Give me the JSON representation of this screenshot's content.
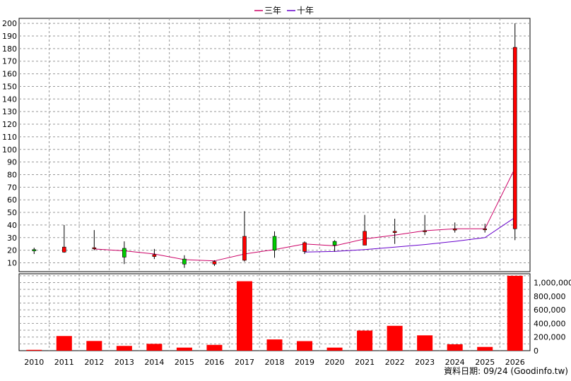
{
  "chart_data": [
    {
      "type": "candlestick",
      "legend": {
        "placement": "top-center",
        "entries": [
          {
            "name": "三年",
            "color": "#cc0066"
          },
          {
            "name": "十年",
            "color": "#6600cc"
          }
        ]
      },
      "categories": [
        "2010",
        "2011",
        "2012",
        "2013",
        "2014",
        "2015",
        "2016",
        "2017",
        "2018",
        "2019",
        "2020",
        "2021",
        "2022",
        "2023",
        "2024",
        "2025",
        "2026"
      ],
      "y_ticks": [
        10,
        20,
        30,
        40,
        50,
        60,
        70,
        80,
        90,
        100,
        110,
        120,
        130,
        140,
        150,
        160,
        170,
        180,
        190,
        200
      ],
      "ylim": [
        3,
        204
      ],
      "grid": true,
      "ohlc": [
        {
          "open": 19.5,
          "high": 22,
          "low": 17,
          "close": 20.5
        },
        {
          "open": 22.5,
          "high": 40,
          "low": 18,
          "close": 18.5
        },
        {
          "open": 22,
          "high": 36,
          "low": 20,
          "close": 21.5
        },
        {
          "open": 14.5,
          "high": 27,
          "low": 9,
          "close": 21.5
        },
        {
          "open": 16.5,
          "high": 21,
          "low": 13,
          "close": 15
        },
        {
          "open": 9,
          "high": 16,
          "low": 6,
          "close": 13
        },
        {
          "open": 11,
          "high": 12,
          "low": 7.5,
          "close": 9
        },
        {
          "open": 31,
          "high": 51,
          "low": 11,
          "close": 12
        },
        {
          "open": 20,
          "high": 35,
          "low": 14,
          "close": 31
        },
        {
          "open": 26,
          "high": 27,
          "low": 17,
          "close": 19
        },
        {
          "open": 24,
          "high": 28,
          "low": 19,
          "close": 27
        },
        {
          "open": 35,
          "high": 48,
          "low": 24,
          "close": 24
        },
        {
          "open": 35,
          "high": 45,
          "low": 25,
          "close": 34
        },
        {
          "open": 35.5,
          "high": 48,
          "low": 32,
          "close": 35
        },
        {
          "open": 37,
          "high": 42,
          "low": 34,
          "close": 36
        },
        {
          "open": 37,
          "high": 41,
          "low": 34,
          "close": 36.5
        },
        {
          "open": 181,
          "high": 200,
          "low": 28,
          "close": 37
        }
      ],
      "series": [
        {
          "name": "三年",
          "color": "#cc0066",
          "values": [
            null,
            null,
            21,
            19.5,
            17,
            12.5,
            11.5,
            17,
            20.5,
            25,
            23.5,
            29,
            32,
            35.5,
            37,
            37,
            85
          ]
        },
        {
          "name": "十年",
          "color": "#6600cc",
          "values": [
            null,
            null,
            null,
            null,
            null,
            null,
            null,
            null,
            null,
            18.5,
            19,
            20.5,
            22.5,
            24.5,
            27,
            30,
            46
          ]
        }
      ],
      "candle_colors": {
        "up": "#ff0000",
        "down": "#00cc00",
        "wick": "#000000"
      }
    },
    {
      "type": "bar",
      "categories": [
        "2010",
        "2011",
        "2012",
        "2013",
        "2014",
        "2015",
        "2016",
        "2017",
        "2018",
        "2019",
        "2020",
        "2021",
        "2022",
        "2023",
        "2024",
        "2025",
        "2026"
      ],
      "values": [
        12000,
        215000,
        142000,
        70000,
        100000,
        45000,
        85000,
        1020000,
        165000,
        140000,
        45000,
        295000,
        365000,
        225000,
        93000,
        55000,
        1100000
      ],
      "y_ticks": [
        0,
        200000,
        400000,
        600000,
        800000,
        1000000
      ],
      "y_tick_labels": [
        "0",
        "200,000",
        "400,000",
        "600,000",
        "800,000",
        "1,000,000"
      ],
      "ylim": [
        0,
        1130000
      ],
      "grid": true,
      "color": "#ff0000"
    }
  ],
  "footer": {
    "text": "資料日期: 09/24  (Goodinfo.tw)"
  }
}
